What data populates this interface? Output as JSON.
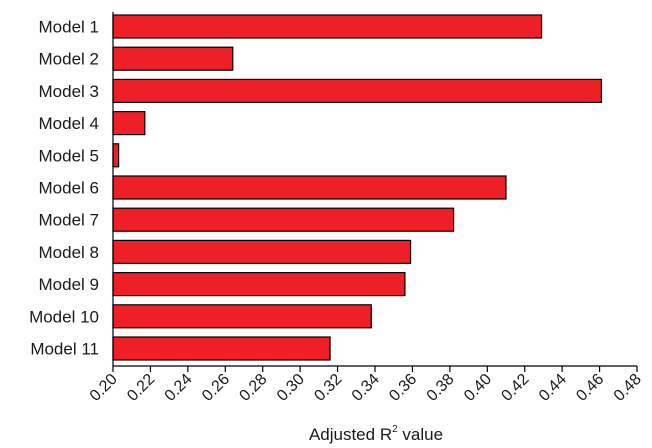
{
  "chart_data": {
    "type": "bar",
    "orientation": "horizontal",
    "categories": [
      "Model 1",
      "Model 2",
      "Model 3",
      "Model 4",
      "Model 5",
      "Model 6",
      "Model 7",
      "Model 8",
      "Model 9",
      "Model 10",
      "Model 11"
    ],
    "values": [
      0.429,
      0.264,
      0.461,
      0.217,
      0.203,
      0.41,
      0.382,
      0.359,
      0.356,
      0.338,
      0.316
    ],
    "xlabel": {
      "prefix": "Adjusted R",
      "superscript": "2",
      "suffix": " value"
    },
    "xlim": [
      0.2,
      0.48
    ],
    "xticks": [
      "0.20",
      "0.22",
      "0.24",
      "0.26",
      "0.28",
      "0.30",
      "0.32",
      "0.34",
      "0.36",
      "0.38",
      "0.40",
      "0.42",
      "0.44",
      "0.46",
      "0.48"
    ],
    "bar_color": "#ee1f26",
    "grid": false,
    "legend": "none"
  }
}
